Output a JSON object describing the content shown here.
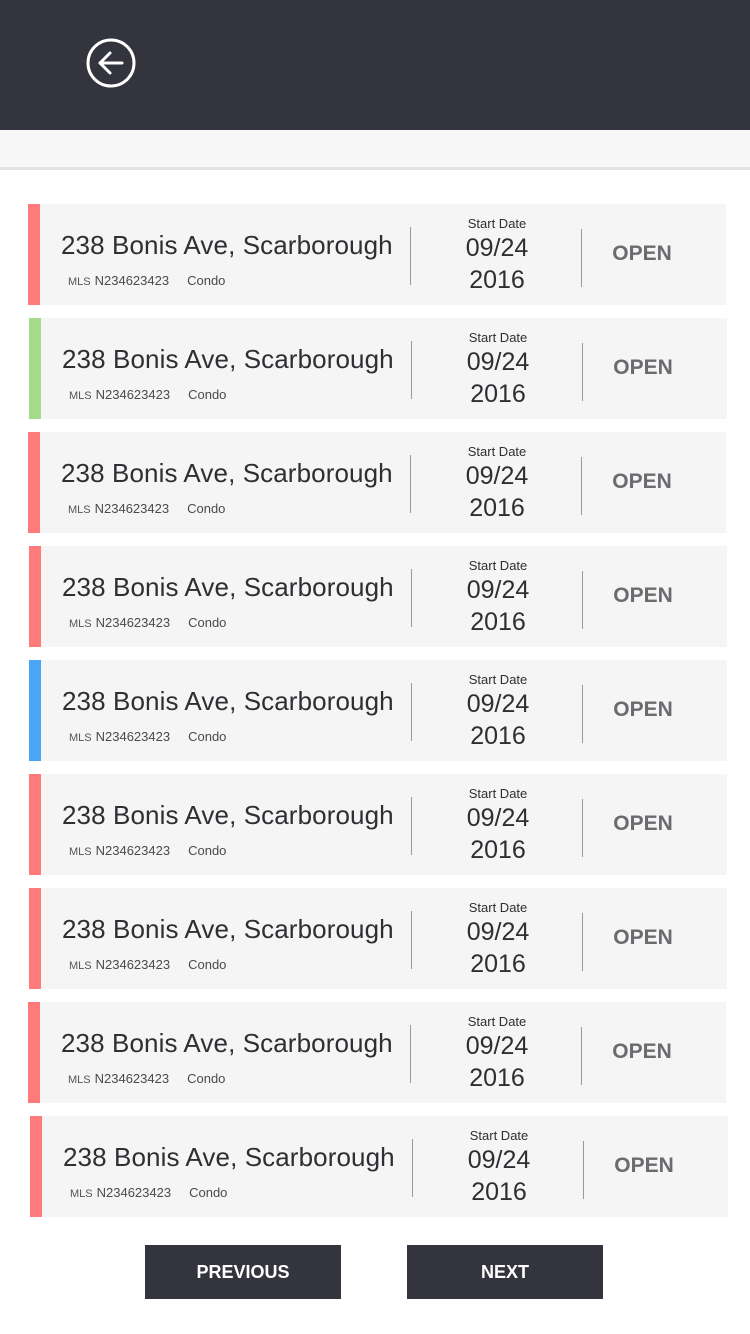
{
  "header": {
    "back_icon": "arrow-left-circle-icon"
  },
  "colors": {
    "header_bg": "#33343d",
    "stripe_red": "#ff7b7b",
    "stripe_green": "#a5dc8c",
    "stripe_blue": "#4aa5f5",
    "card_bg": "#f5f5f5"
  },
  "listings": [
    {
      "address": "238 Bonis Ave, Scarborough",
      "mls_label": "MLS",
      "mls": "N234623423",
      "type": "Condo",
      "date_label": "Start Date",
      "date_md": "09/24",
      "date_year": "2016",
      "status": "OPEN",
      "stripe": "red"
    },
    {
      "address": "238 Bonis Ave, Scarborough",
      "mls_label": "MLS",
      "mls": "N234623423",
      "type": "Condo",
      "date_label": "Start Date",
      "date_md": "09/24",
      "date_year": "2016",
      "status": "OPEN",
      "stripe": "green"
    },
    {
      "address": "238 Bonis Ave, Scarborough",
      "mls_label": "MLS",
      "mls": "N234623423",
      "type": "Condo",
      "date_label": "Start Date",
      "date_md": "09/24",
      "date_year": "2016",
      "status": "OPEN",
      "stripe": "red"
    },
    {
      "address": "238 Bonis Ave, Scarborough",
      "mls_label": "MLS",
      "mls": "N234623423",
      "type": "Condo",
      "date_label": "Start Date",
      "date_md": "09/24",
      "date_year": "2016",
      "status": "OPEN",
      "stripe": "red"
    },
    {
      "address": "238 Bonis Ave, Scarborough",
      "mls_label": "MLS",
      "mls": "N234623423",
      "type": "Condo",
      "date_label": "Start Date",
      "date_md": "09/24",
      "date_year": "2016",
      "status": "OPEN",
      "stripe": "blue"
    },
    {
      "address": "238 Bonis Ave, Scarborough",
      "mls_label": "MLS",
      "mls": "N234623423",
      "type": "Condo",
      "date_label": "Start Date",
      "date_md": "09/24",
      "date_year": "2016",
      "status": "OPEN",
      "stripe": "red"
    },
    {
      "address": "238 Bonis Ave, Scarborough",
      "mls_label": "MLS",
      "mls": "N234623423",
      "type": "Condo",
      "date_label": "Start Date",
      "date_md": "09/24",
      "date_year": "2016",
      "status": "OPEN",
      "stripe": "red"
    },
    {
      "address": "238 Bonis Ave, Scarborough",
      "mls_label": "MLS",
      "mls": "N234623423",
      "type": "Condo",
      "date_label": "Start Date",
      "date_md": "09/24",
      "date_year": "2016",
      "status": "OPEN",
      "stripe": "red"
    },
    {
      "address": "238 Bonis Ave, Scarborough",
      "mls_label": "MLS",
      "mls": "N234623423",
      "type": "Condo",
      "date_label": "Start Date",
      "date_md": "09/24",
      "date_year": "2016",
      "status": "OPEN",
      "stripe": "red"
    }
  ],
  "pagination": {
    "previous_label": "PREVIOUS",
    "next_label": "NEXT"
  }
}
